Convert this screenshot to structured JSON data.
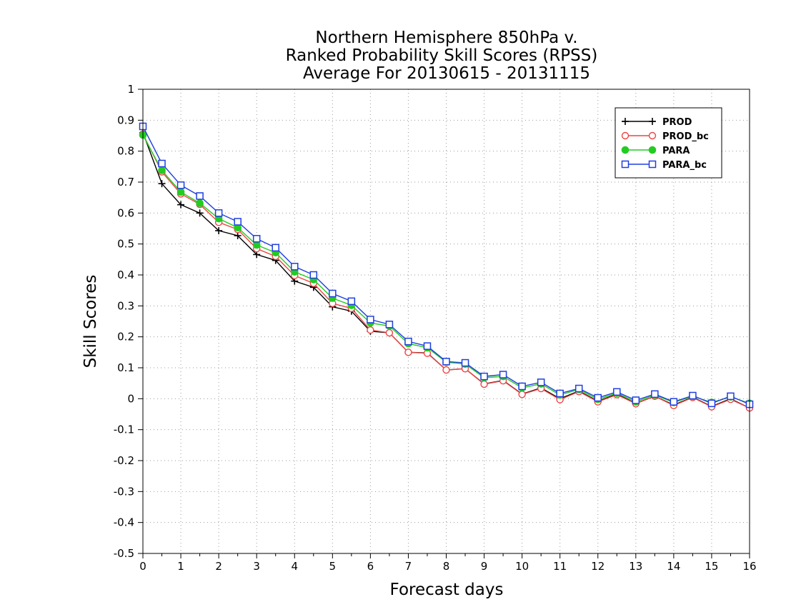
{
  "chart_data": {
    "type": "line",
    "title_lines": [
      "Northern Hemisphere 850hPa v.",
      "Ranked Probability Skill Scores (RPSS)",
      "Average For 20130615 - 20131115"
    ],
    "xlabel": "Forecast days",
    "ylabel": "Skill Scores",
    "xlim": [
      0,
      16
    ],
    "ylim": [
      -0.5,
      1
    ],
    "xticks": [
      "0",
      "1",
      "2",
      "3",
      "4",
      "5",
      "6",
      "7",
      "8",
      "9",
      "10",
      "11",
      "12",
      "13",
      "14",
      "15",
      "16"
    ],
    "yticks": [
      "1",
      "0.9",
      "0.8",
      "0.7",
      "0.6",
      "0.5",
      "0.4",
      "0.3",
      "0.2",
      "0.1",
      "0",
      "-0.1",
      "-0.2",
      "-0.3",
      "-0.4",
      "-0.5"
    ],
    "grid": true,
    "legend_position": "top-right",
    "x": [
      0,
      0.5,
      1,
      1.5,
      2,
      2.5,
      3,
      3.5,
      4,
      4.5,
      5,
      5.5,
      6,
      6.5,
      7,
      7.5,
      8,
      8.5,
      9,
      9.5,
      10,
      10.5,
      11,
      11.5,
      12,
      12.5,
      13,
      13.5,
      14,
      14.5,
      15,
      15.5,
      16
    ],
    "series": [
      {
        "name": "PROD",
        "color": "#000000",
        "marker": "plus",
        "values": [
          0.86,
          0.695,
          0.627,
          0.6,
          0.543,
          0.527,
          0.466,
          0.447,
          0.38,
          0.36,
          0.297,
          0.283,
          0.218,
          0.213,
          0.15,
          0.148,
          0.093,
          0.097,
          0.048,
          0.059,
          0.015,
          0.035,
          0.0,
          0.025,
          -0.008,
          0.015,
          -0.015,
          0.008,
          -0.02,
          0.005,
          -0.025,
          0.0,
          -0.03
        ]
      },
      {
        "name": "PROD_bc",
        "color": "#ee4444",
        "marker": "circle-open",
        "values": [
          0.855,
          0.733,
          0.662,
          0.628,
          0.57,
          0.547,
          0.485,
          0.46,
          0.398,
          0.373,
          0.308,
          0.292,
          0.222,
          0.213,
          0.15,
          0.147,
          0.093,
          0.097,
          0.047,
          0.058,
          0.014,
          0.033,
          -0.003,
          0.023,
          -0.01,
          0.013,
          -0.016,
          0.008,
          -0.022,
          0.004,
          -0.026,
          -0.002,
          -0.03
        ]
      },
      {
        "name": "PARA",
        "color": "#22cc22",
        "marker": "circle-filled",
        "values": [
          0.852,
          0.738,
          0.668,
          0.632,
          0.582,
          0.553,
          0.497,
          0.472,
          0.41,
          0.385,
          0.325,
          0.302,
          0.245,
          0.235,
          0.178,
          0.165,
          0.118,
          0.112,
          0.068,
          0.072,
          0.035,
          0.048,
          0.012,
          0.03,
          -0.002,
          0.018,
          -0.01,
          0.012,
          -0.012,
          0.008,
          -0.012,
          0.006,
          -0.015
        ]
      },
      {
        "name": "PARA_bc",
        "color": "#1f3fe0",
        "marker": "square-open",
        "values": [
          0.88,
          0.76,
          0.69,
          0.655,
          0.6,
          0.572,
          0.517,
          0.488,
          0.427,
          0.4,
          0.34,
          0.315,
          0.256,
          0.24,
          0.185,
          0.17,
          0.12,
          0.116,
          0.072,
          0.078,
          0.04,
          0.053,
          0.017,
          0.033,
          0.003,
          0.022,
          -0.005,
          0.015,
          -0.01,
          0.01,
          -0.015,
          0.008,
          -0.018
        ]
      }
    ]
  }
}
